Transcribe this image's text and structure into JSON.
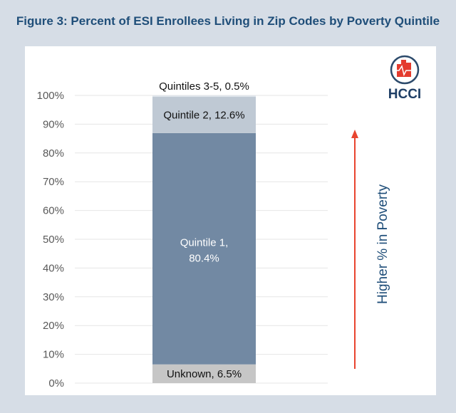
{
  "title": "Figure 3: Percent of ESI Enrollees Living in Zip Codes by Poverty Quintile",
  "logo": {
    "text": "HCCI"
  },
  "chart_data": {
    "type": "bar",
    "stacked": true,
    "categories": [
      ""
    ],
    "series": [
      {
        "name": "Unknown",
        "values": [
          6.5
        ],
        "label": "Unknown, 6.5%",
        "color": "#c6c6c6"
      },
      {
        "name": "Quintile 1",
        "values": [
          80.4
        ],
        "label_lines": [
          "Quintile 1,",
          "80.4%"
        ],
        "color": "#7289a3"
      },
      {
        "name": "Quintile 2",
        "values": [
          12.6
        ],
        "label": "Quintile 2, 12.6%",
        "color": "#bfc9d4"
      },
      {
        "name": "Quintiles 3-5",
        "values": [
          0.5
        ],
        "label": "Quintiles 3-5, 0.5%",
        "color": "#dfe5eb"
      }
    ],
    "ylim": [
      0,
      100
    ],
    "yticks": [
      "0%",
      "10%",
      "20%",
      "30%",
      "40%",
      "50%",
      "60%",
      "70%",
      "80%",
      "90%",
      "100%"
    ],
    "grid": true,
    "annotation": {
      "text": "Higher % in Poverty",
      "arrow": "up",
      "arrow_color": "#e8442f",
      "text_color": "#1f4e79"
    }
  }
}
